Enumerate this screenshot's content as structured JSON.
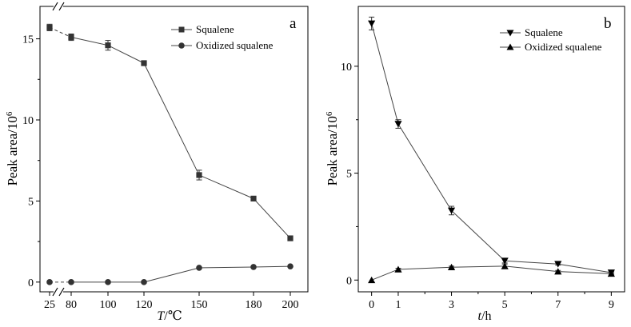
{
  "chart_data": [
    {
      "type": "line",
      "panel_label": "a",
      "xlabel_italic": "T",
      "xlabel_rest": "/℃",
      "ylabel_main": "Peak area/10",
      "ylabel_sup": "6",
      "categories": [
        "25",
        "80",
        "100",
        "120",
        "150",
        "180",
        "200"
      ],
      "x_break": "between 25 and 80",
      "ylim": [
        -0.6,
        17
      ],
      "yticks": [
        0,
        5,
        10,
        15
      ],
      "legend_position": "top-right",
      "series": [
        {
          "name": "Squalene",
          "marker": "square",
          "values": [
            15.7,
            15.1,
            14.6,
            13.5,
            6.6,
            5.15,
            2.7
          ],
          "errors": [
            0.2,
            0.2,
            0.3,
            0.15,
            0.3,
            0.1,
            0.05
          ]
        },
        {
          "name": "Oxidized squalene",
          "marker": "circle",
          "values": [
            0,
            0,
            0,
            0,
            0.88,
            0.93,
            0.97
          ],
          "errors": [
            0,
            0,
            0,
            0,
            0.04,
            0.04,
            0.04
          ]
        }
      ]
    },
    {
      "type": "line",
      "panel_label": "b",
      "xlabel_italic": "t",
      "xlabel_rest": "/h",
      "ylabel_main": "Peak area/10",
      "ylabel_sup": "6",
      "x": [
        0,
        1,
        3,
        5,
        7,
        9
      ],
      "xticks": [
        0,
        1,
        3,
        5,
        7,
        9
      ],
      "xlim": [
        -0.5,
        9.5
      ],
      "ylim": [
        -0.55,
        12.8
      ],
      "yticks": [
        0,
        5,
        10
      ],
      "legend_position": "top-right",
      "series": [
        {
          "name": "Squalene",
          "marker": "triangle-down",
          "values": [
            12.0,
            7.3,
            3.25,
            0.9,
            0.75,
            0.35
          ],
          "errors": [
            0.3,
            0.2,
            0.2,
            0.1,
            0.05,
            0.05
          ]
        },
        {
          "name": "Oxidized squalene",
          "marker": "triangle-up",
          "values": [
            0,
            0.5,
            0.6,
            0.65,
            0.4,
            0.3
          ],
          "errors": [
            0,
            0.05,
            0.05,
            0.1,
            0.05,
            0.05
          ]
        }
      ]
    }
  ]
}
